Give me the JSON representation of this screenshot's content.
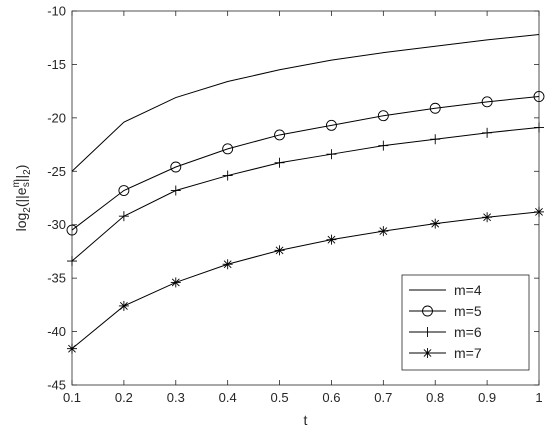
{
  "chart_data": {
    "type": "line",
    "xlabel": "t",
    "ylabel": {
      "prefix": "log",
      "prefix_sub": "2",
      "open": "(||e",
      "e_sub": "s",
      "e_sup": "m",
      "close": "||",
      "close_sub": "2",
      "end": ")"
    },
    "xlim": [
      0.1,
      1
    ],
    "ylim": [
      -45,
      -10
    ],
    "xticks": [
      "0.1",
      "0.2",
      "0.3",
      "0.4",
      "0.5",
      "0.6",
      "0.7",
      "0.8",
      "0.9",
      "1"
    ],
    "yticks": [
      "-10",
      "-15",
      "-20",
      "-25",
      "-30",
      "-35",
      "-40",
      "-45"
    ],
    "x": [
      0.1,
      0.2,
      0.3,
      0.4,
      0.5,
      0.6,
      0.7,
      0.8,
      0.9,
      1.0
    ],
    "legend_position": "bottom-right",
    "series": [
      {
        "name": "m=4",
        "marker": "none",
        "color": "#000000",
        "values": [
          -25.0,
          -20.4,
          -18.1,
          -16.6,
          -15.5,
          -14.6,
          -13.9,
          -13.3,
          -12.7,
          -12.2
        ]
      },
      {
        "name": "m=5",
        "marker": "circle",
        "color": "#000000",
        "values": [
          -30.5,
          -26.8,
          -24.6,
          -22.9,
          -21.6,
          -20.7,
          -19.8,
          -19.1,
          -18.5,
          -18.0
        ]
      },
      {
        "name": "m=6",
        "marker": "plus",
        "color": "#000000",
        "values": [
          -33.4,
          -29.2,
          -26.8,
          -25.4,
          -24.2,
          -23.4,
          -22.6,
          -22.0,
          -21.4,
          -20.9
        ]
      },
      {
        "name": "m=7",
        "marker": "asterisk",
        "color": "#000000",
        "values": [
          -41.6,
          -37.6,
          -35.4,
          -33.7,
          -32.4,
          -31.4,
          -30.6,
          -29.9,
          -29.3,
          -28.8
        ]
      }
    ]
  }
}
